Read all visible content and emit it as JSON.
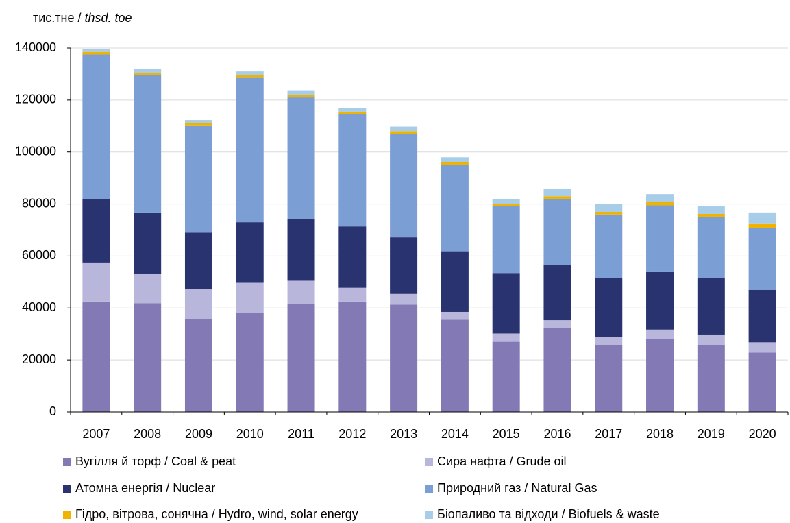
{
  "chart_data": {
    "type": "stacked_bar",
    "ylabel": "тис.тне /",
    "ylabel_unit": "thsd. toe",
    "categories": [
      "2007",
      "2008",
      "2009",
      "2010",
      "2011",
      "2012",
      "2013",
      "2014",
      "2015",
      "2016",
      "2017",
      "2018",
      "2019",
      "2020"
    ],
    "series": [
      {
        "name": "Вугілля й торф / Coal & peat",
        "color": "#8279b5",
        "values": [
          42500,
          41800,
          35800,
          38000,
          41500,
          42500,
          41300,
          35500,
          27000,
          32300,
          25600,
          28000,
          25800,
          22800
        ]
      },
      {
        "name": "Сира нафта / Grude oil",
        "color": "#b9b6dc",
        "values": [
          15000,
          11200,
          11500,
          11700,
          9000,
          5300,
          4100,
          3000,
          3200,
          3000,
          3400,
          3700,
          4000,
          4000
        ]
      },
      {
        "name": "Атомна енергія / Nuclear",
        "color": "#283370",
        "values": [
          24500,
          23500,
          21700,
          23300,
          23800,
          23600,
          21800,
          23300,
          23000,
          21200,
          22600,
          22100,
          21800,
          20200
        ]
      },
      {
        "name": "Природний газ / Natural Gas",
        "color": "#7b9ed4",
        "values": [
          55500,
          53000,
          41000,
          55500,
          46700,
          43100,
          39600,
          33200,
          26000,
          25500,
          24400,
          25700,
          23400,
          23800
        ]
      },
      {
        "name": "Гідро, вітрова, сонячна / Hydro, wind, solar energy",
        "color": "#f0b400",
        "values": [
          1000,
          1000,
          1000,
          1000,
          1000,
          1000,
          1200,
          1000,
          800,
          1000,
          1000,
          1200,
          1200,
          1500
        ]
      },
      {
        "name": "Біопаливо та відходи / Biofuels & waste",
        "color": "#a8cde8",
        "values": [
          1000,
          1500,
          1300,
          1500,
          1500,
          1500,
          1800,
          2000,
          2000,
          2700,
          3000,
          3100,
          3100,
          4200
        ]
      }
    ],
    "ylim": [
      0,
      140000
    ],
    "yticks": [
      0,
      20000,
      40000,
      60000,
      80000,
      100000,
      120000,
      140000
    ],
    "grid": true
  }
}
